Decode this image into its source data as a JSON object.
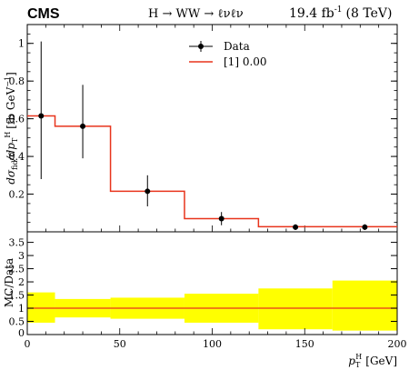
{
  "header": {
    "experiment": "CMS",
    "process": "H → WW → ℓνℓν",
    "lumi": "19.4 fb",
    "lumi_exp": "-1",
    "energy": "(8 TeV)"
  },
  "colors": {
    "mc_line": "#e8341c",
    "band": "#ffff00",
    "data": "#000000",
    "frame": "#000000"
  },
  "chart_data": [
    {
      "type": "line",
      "panel": "main",
      "ylabel": "dσfid/dpTH [fb GeV⁻¹]",
      "ylabel_parts": {
        "a": "dσ",
        "a_sub": "fid",
        "b": "/dp",
        "b_sub": "T",
        "b_sup": "H",
        "units": "[fb GeV",
        "units_exp": "−1",
        "close": "]"
      },
      "xlim": [
        0,
        200
      ],
      "ylim": [
        0,
        1.1
      ],
      "yticks": [
        {
          "v": 0.2,
          "label": "0.2"
        },
        {
          "v": 0.4,
          "label": "0.4"
        },
        {
          "v": 0.6,
          "label": "0.6"
        },
        {
          "v": 0.8,
          "label": "0.8"
        },
        {
          "v": 1.0,
          "label": "1"
        }
      ],
      "legend": {
        "position": "top-center",
        "entries": [
          {
            "label": "Data",
            "kind": "marker"
          },
          {
            "label": "[1] 0.00",
            "kind": "line"
          }
        ]
      },
      "series": [
        {
          "name": "[1] 0.00",
          "kind": "histogram",
          "bins": [
            {
              "lo": 0,
              "hi": 15,
              "y": 0.615
            },
            {
              "lo": 15,
              "hi": 45,
              "y": 0.56
            },
            {
              "lo": 45,
              "hi": 85,
              "y": 0.215
            },
            {
              "lo": 85,
              "hi": 125,
              "y": 0.07
            },
            {
              "lo": 125,
              "hi": 165,
              "y": 0.027
            },
            {
              "lo": 165,
              "hi": 200,
              "y": 0.027
            }
          ]
        },
        {
          "name": "Data",
          "kind": "points",
          "points": [
            {
              "x": 7.5,
              "y": 0.615,
              "up": 1.01,
              "down": 0.28
            },
            {
              "x": 30,
              "y": 0.56,
              "up": 0.78,
              "down": 0.39
            },
            {
              "x": 65,
              "y": 0.215,
              "up": 0.3,
              "down": 0.135
            },
            {
              "x": 105,
              "y": 0.07,
              "up": 0.105,
              "down": 0.035
            },
            {
              "x": 145,
              "y": 0.025,
              "up": 0.04,
              "down": 0.01
            },
            {
              "x": 182.5,
              "y": 0.025,
              "up": 0.04,
              "down": 0.01
            }
          ]
        }
      ]
    },
    {
      "type": "area",
      "panel": "ratio",
      "ylabel": "MC/Data",
      "xlabel": "pTH [GeV]",
      "xlabel_parts": {
        "a": "p",
        "a_sub": "T",
        "a_sup": "H",
        "units": "[GeV]"
      },
      "xlim": [
        0,
        200
      ],
      "ylim": [
        0,
        3.9
      ],
      "xticks": [
        {
          "v": 0,
          "label": "0"
        },
        {
          "v": 50,
          "label": "50"
        },
        {
          "v": 100,
          "label": "100"
        },
        {
          "v": 150,
          "label": "150"
        },
        {
          "v": 200,
          "label": "200"
        }
      ],
      "yticks": [
        {
          "v": 0.5,
          "label": "0.5"
        },
        {
          "v": 1,
          "label": "1"
        },
        {
          "v": 1.5,
          "label": "1.5"
        },
        {
          "v": 2,
          "label": "2"
        },
        {
          "v": 2.5,
          "label": "2.5"
        },
        {
          "v": 3,
          "label": "3"
        },
        {
          "v": 3.5,
          "label": "3.5"
        }
      ],
      "ratio_value": 1.0,
      "band": [
        {
          "lo": 0,
          "hi": 15,
          "low": 0.45,
          "high": 1.6
        },
        {
          "lo": 15,
          "hi": 45,
          "low": 0.65,
          "high": 1.35
        },
        {
          "lo": 45,
          "hi": 85,
          "low": 0.6,
          "high": 1.4
        },
        {
          "lo": 85,
          "hi": 125,
          "low": 0.45,
          "high": 1.55
        },
        {
          "lo": 125,
          "hi": 165,
          "low": 0.2,
          "high": 1.75
        },
        {
          "lo": 165,
          "hi": 200,
          "low": 0.15,
          "high": 2.05
        }
      ]
    }
  ]
}
